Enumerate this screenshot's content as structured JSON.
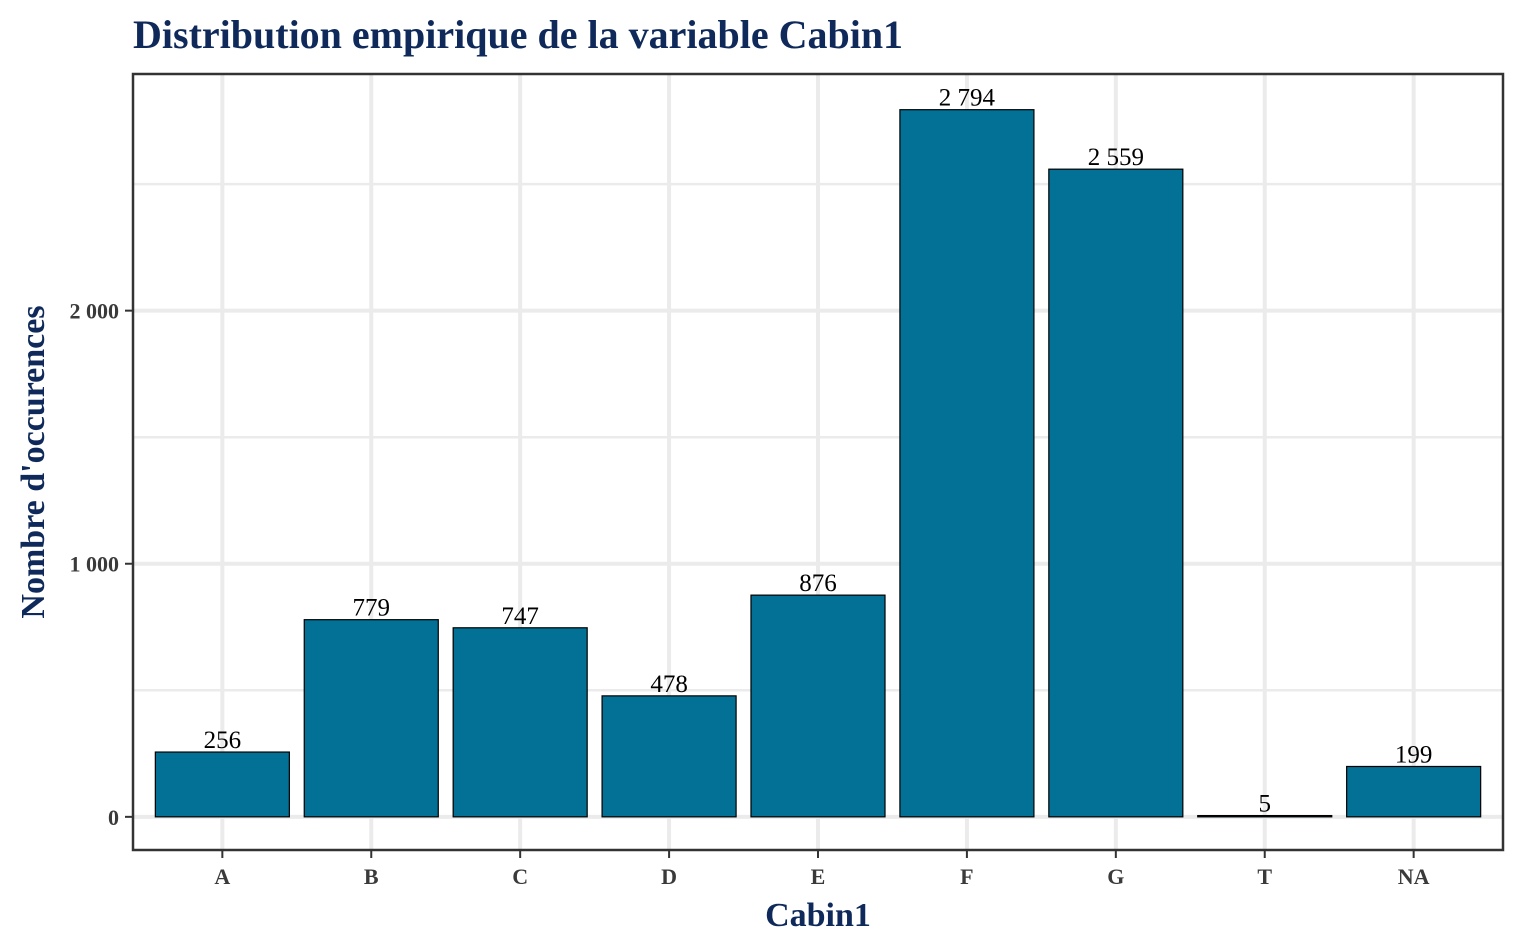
{
  "chart_data": {
    "type": "bar",
    "title": "Distribution empirique de la variable Cabin1",
    "xlabel": "Cabin1",
    "ylabel": "Nombre d'occurences",
    "categories": [
      "A",
      "B",
      "C",
      "D",
      "E",
      "F",
      "G",
      "T",
      "NA"
    ],
    "values": [
      256,
      779,
      747,
      478,
      876,
      2794,
      2559,
      5,
      199
    ],
    "value_labels": [
      "256",
      "779",
      "747",
      "478",
      "876",
      "2 794",
      "2 559",
      "5",
      "199"
    ],
    "yticks": [
      0,
      1000,
      2000
    ],
    "ytick_labels": [
      "0",
      "1 000",
      "2 000"
    ],
    "yminor_ticks": [
      500,
      1500,
      2500
    ],
    "ylim": [
      -131,
      2935
    ],
    "grid": true,
    "legend": "none",
    "bar_color": "#037096",
    "bar_edge_color": "#000000",
    "title_color": "#0f2a5a"
  }
}
